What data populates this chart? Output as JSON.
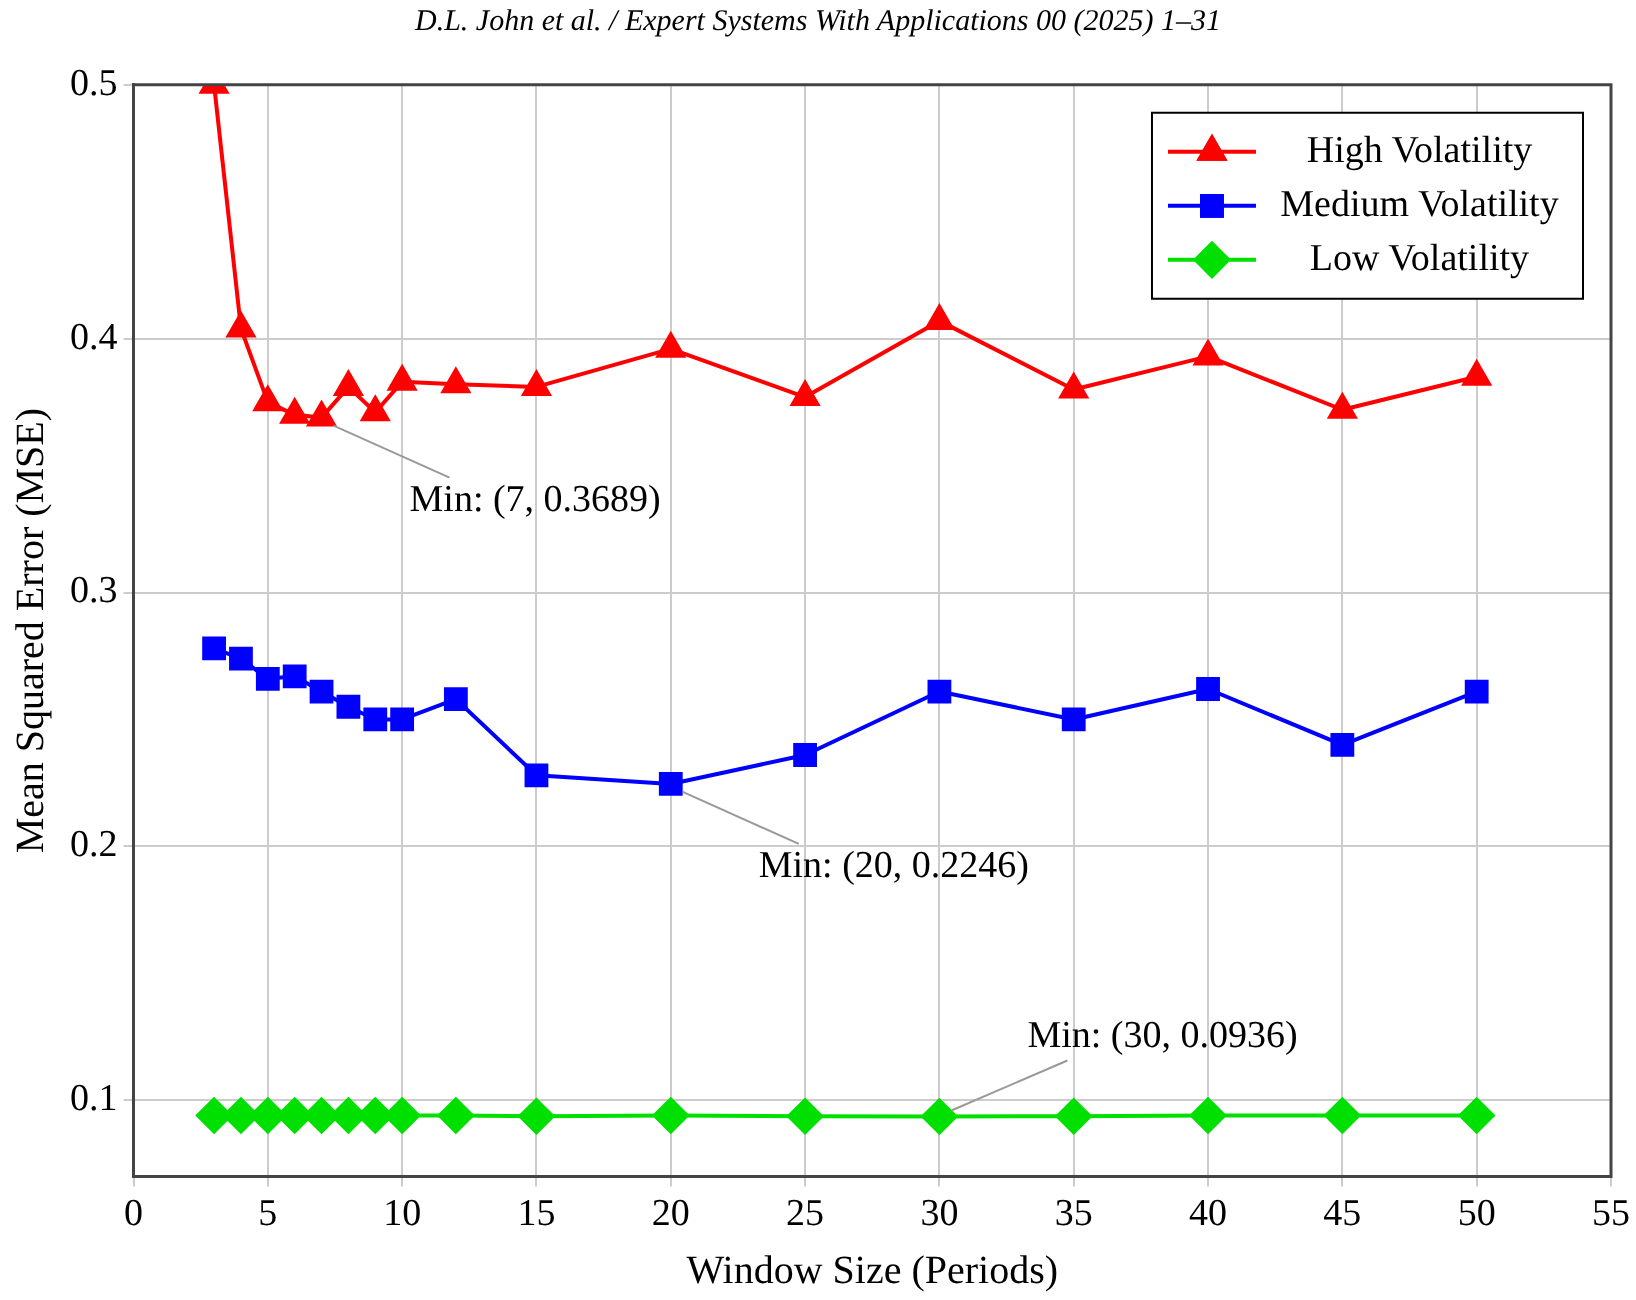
{
  "chart_data": {
    "type": "line",
    "xlabel": "Window Size (Periods)",
    "ylabel": "Mean Squared Error (MSE)",
    "x": [
      3,
      4,
      5,
      6,
      7,
      8,
      9,
      10,
      12,
      15,
      20,
      25,
      30,
      35,
      40,
      45,
      50
    ],
    "series": [
      {
        "name": "High Volatility",
        "color": "#ff0000",
        "marker": "triangle",
        "values": [
          0.5,
          0.404,
          0.375,
          0.37,
          0.3689,
          0.381,
          0.371,
          0.383,
          0.382,
          0.381,
          0.396,
          0.377,
          0.407,
          0.38,
          0.393,
          0.372,
          0.385
        ]
      },
      {
        "name": "Medium Volatility",
        "color": "#0000ff",
        "marker": "square",
        "values": [
          0.278,
          0.274,
          0.266,
          0.267,
          0.261,
          0.255,
          0.25,
          0.25,
          0.258,
          0.228,
          0.2246,
          0.236,
          0.261,
          0.25,
          0.262,
          0.24,
          0.261
        ]
      },
      {
        "name": "Low Volatility",
        "color": "#00e000",
        "marker": "diamond",
        "values": [
          0.094,
          0.094,
          0.094,
          0.094,
          0.094,
          0.094,
          0.094,
          0.094,
          0.094,
          0.0937,
          0.094,
          0.0937,
          0.0936,
          0.0937,
          0.094,
          0.094,
          0.094
        ]
      }
    ],
    "xlim": [
      0,
      55
    ],
    "xticks": [
      0,
      5,
      10,
      15,
      20,
      25,
      30,
      35,
      40,
      45,
      50,
      55
    ],
    "ylim": [
      0.07,
      0.5
    ],
    "yticks": [
      0.1,
      0.2,
      0.3,
      0.4,
      0.5
    ],
    "grid": true,
    "legend": "top right",
    "line_style": "solid",
    "annotations": [
      "D.L. John et al. / Expert Systems With Applications 00 (2025) 1–31",
      {
        "text": "Min: (7, 0.3689)",
        "x": 7,
        "y": 0.3689
      },
      {
        "text": "Min: (20, 0.2246)",
        "x": 20,
        "y": 0.2246
      },
      {
        "text": "Min: (30, 0.0936)",
        "x": 30,
        "y": 0.0936
      }
    ]
  }
}
